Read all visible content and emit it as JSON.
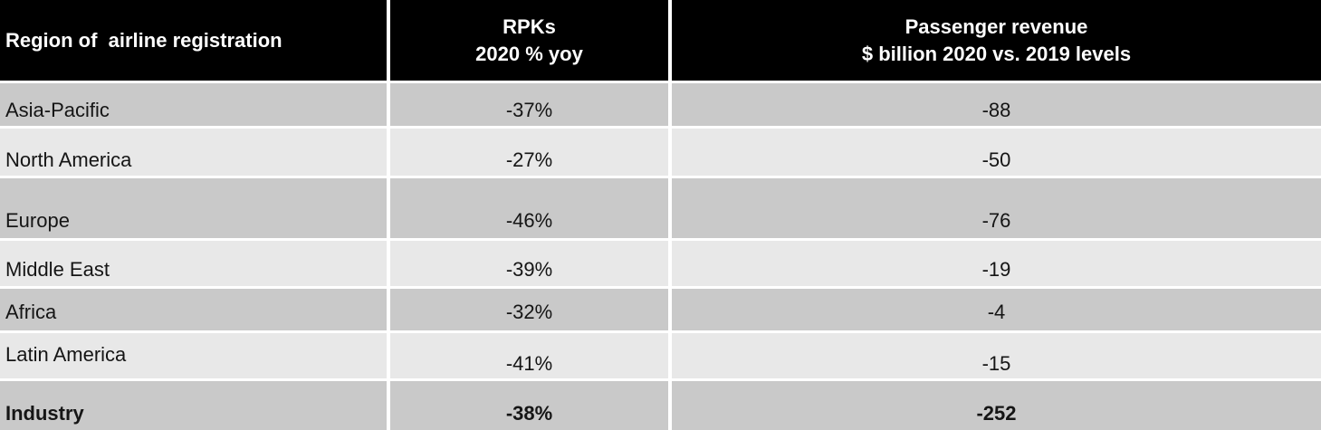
{
  "header": {
    "region": "Region of  airline registration",
    "rpks": "RPKs\n2020 % yoy",
    "revenue": "Passenger revenue\n$ billion 2020 vs. 2019 levels"
  },
  "rows": [
    {
      "region": "Asia-Pacific",
      "rpks": "-37%",
      "revenue": "-88"
    },
    {
      "region": "North America",
      "rpks": "-27%",
      "revenue": "-50"
    },
    {
      "region": "Europe",
      "rpks": "-46%",
      "revenue": "-76"
    },
    {
      "region": "Middle East",
      "rpks": "-39%",
      "revenue": "-19"
    },
    {
      "region": "Africa",
      "rpks": "-32%",
      "revenue": "-4"
    },
    {
      "region": "Latin America",
      "rpks": "-41%",
      "revenue": "-15"
    },
    {
      "region": "Industry",
      "rpks": "-38%",
      "revenue": "-252"
    }
  ],
  "colors": {
    "header_bg": "#000000",
    "header_text": "#ffffff",
    "row_dark": "#c9c9c9",
    "row_light": "#e8e8e8",
    "divider": "#ffffff",
    "body_text": "#151515"
  },
  "chart_data": {
    "type": "table",
    "title": "",
    "columns": [
      "Region of  airline registration",
      "RPKs 2020 % yoy",
      "Passenger revenue $ billion 2020 vs. 2019 levels"
    ],
    "categories": [
      "Asia-Pacific",
      "North America",
      "Europe",
      "Middle East",
      "Africa",
      "Latin America",
      "Industry"
    ],
    "series": [
      {
        "name": "RPKs 2020 % yoy",
        "unit": "%",
        "values": [
          -37,
          -27,
          -46,
          -39,
          -32,
          -41,
          -38
        ]
      },
      {
        "name": "Passenger revenue $ billion 2020 vs. 2019 levels",
        "unit": "$ billion",
        "values": [
          -88,
          -50,
          -76,
          -19,
          -4,
          -15,
          -252
        ]
      }
    ],
    "layout": {
      "grid": "white separators",
      "row_shading": "alternating gray",
      "header": "black"
    }
  }
}
